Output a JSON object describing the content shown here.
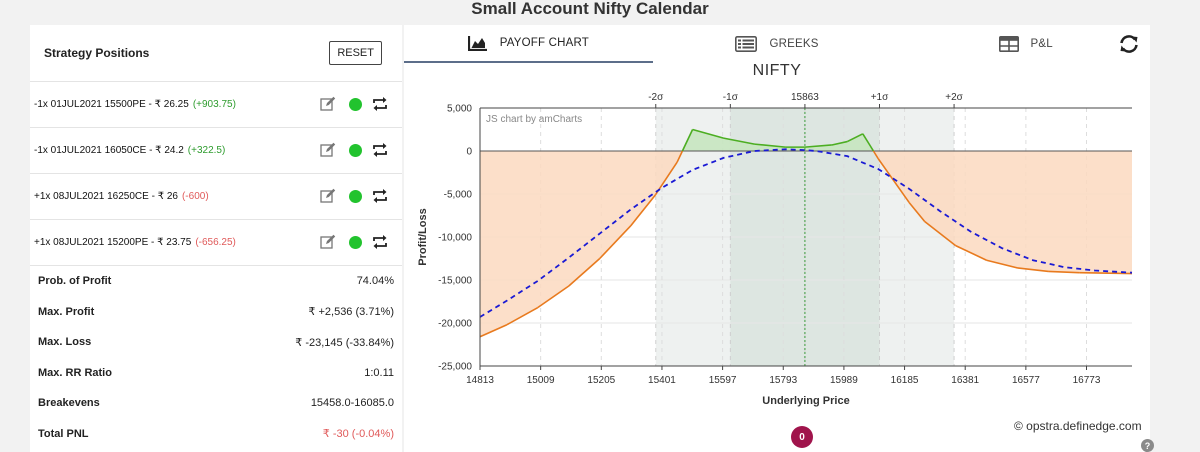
{
  "page": {
    "title": "Small Account Nifty Calendar"
  },
  "left": {
    "title": "Strategy Positions",
    "reset_label": "RESET",
    "positions": [
      {
        "desc": "-1x  01JUL2021  15500PE  - ₹ 26.25",
        "pnl": "(+903.75)",
        "sign": "pos"
      },
      {
        "desc": "-1x  01JUL2021  16050CE  - ₹ 24.2",
        "pnl": "(+322.5)",
        "sign": "pos"
      },
      {
        "desc": "+1x  08JUL2021  16250CE  - ₹ 26",
        "pnl": "(-600)",
        "sign": "neg"
      },
      {
        "desc": "+1x  08JUL2021  15200PE  - ₹ 23.75",
        "pnl": "(-656.25)",
        "sign": "neg"
      }
    ],
    "stats": [
      {
        "label": "Prob. of Profit",
        "value": "74.04%"
      },
      {
        "label": "Max. Profit",
        "value": "₹ +2,536 (3.71%)"
      },
      {
        "label": "Max. Loss",
        "value": "₹ -23,145 (-33.84%)"
      },
      {
        "label": "Max. RR Ratio",
        "value": "1:0.11"
      },
      {
        "label": "Breakevens",
        "value": "15458.0-16085.0"
      },
      {
        "label": "Total PNL",
        "value": "₹ -30 (-0.04%)",
        "negative": true
      }
    ]
  },
  "tabs": [
    {
      "label": "PAYOFF CHART",
      "icon": "area-chart-icon",
      "active": true
    },
    {
      "label": "GREEKS",
      "icon": "list-icon",
      "active": false
    },
    {
      "label": "P&L",
      "icon": "table-icon",
      "active": false
    }
  ],
  "chart_data": {
    "type": "line",
    "title": "NIFTY",
    "watermark": "JS chart by amCharts",
    "xlabel": "Underlying Price",
    "ylabel": "Profit/Loss",
    "xlim": [
      14813,
      16920
    ],
    "ylim": [
      -25000,
      5000
    ],
    "x_ticks": [
      14813,
      15009,
      15205,
      15401,
      15597,
      15793,
      15989,
      16185,
      16381,
      16577,
      16773
    ],
    "y_ticks": [
      5000,
      0,
      -5000,
      -10000,
      -15000,
      -20000,
      -25000
    ],
    "y_tick_labels": [
      "5,000",
      "0",
      "-5,000",
      "-10,000",
      "-15,000",
      "-20,000",
      "-25,000"
    ],
    "top_axis": [
      {
        "label": "-2σ",
        "x": 15381
      },
      {
        "label": "-1σ",
        "x": 15622
      },
      {
        "label": "15863",
        "x": 15863
      },
      {
        "label": "+1σ",
        "x": 16104
      },
      {
        "label": "+2σ",
        "x": 16345
      }
    ],
    "sigma_bands": {
      "two_sigma": [
        15381,
        16345
      ],
      "one_sigma": [
        15622,
        16104
      ]
    },
    "spot": 15863,
    "series": [
      {
        "style": "solid",
        "x": [
          14813,
          14900,
          15000,
          15100,
          15200,
          15300,
          15380,
          15450,
          15500,
          15600,
          15700,
          15800,
          15863,
          15950,
          16000,
          16050,
          16100,
          16200,
          16250,
          16350,
          16450,
          16550,
          16650,
          16750,
          16920
        ],
        "y": [
          -21600,
          -20200,
          -18200,
          -15700,
          -12500,
          -8700,
          -5100,
          -1300,
          2500,
          1500,
          800,
          450,
          450,
          700,
          1100,
          2000,
          -900,
          -6000,
          -8200,
          -11000,
          -12700,
          -13600,
          -14000,
          -14150,
          -14250
        ]
      },
      {
        "style": "dashed",
        "x": [
          14813,
          14900,
          15000,
          15100,
          15200,
          15300,
          15400,
          15500,
          15600,
          15700,
          15800,
          15863,
          15900,
          16000,
          16100,
          16200,
          16300,
          16400,
          16500,
          16600,
          16700,
          16800,
          16920
        ],
        "y": [
          -19300,
          -17400,
          -15100,
          -12400,
          -9600,
          -6800,
          -4300,
          -2200,
          -800,
          0,
          200,
          100,
          0,
          -600,
          -2100,
          -4400,
          -7000,
          -9400,
          -11300,
          -12700,
          -13500,
          -13900,
          -14150
        ]
      }
    ],
    "colors": {
      "line": "#e87a1e",
      "profit_fill": "#c6e6c0",
      "profit_line": "#4cae22",
      "loss_fill": "#fbd9bf",
      "dashed": "#1a1ad4",
      "band2": "#eef1f0",
      "band1": "#dde6e1",
      "spot_line": "#3a9b3a"
    }
  },
  "footer": {
    "credit": "© opstra.definedge.com",
    "badge": "0",
    "help": "?"
  }
}
